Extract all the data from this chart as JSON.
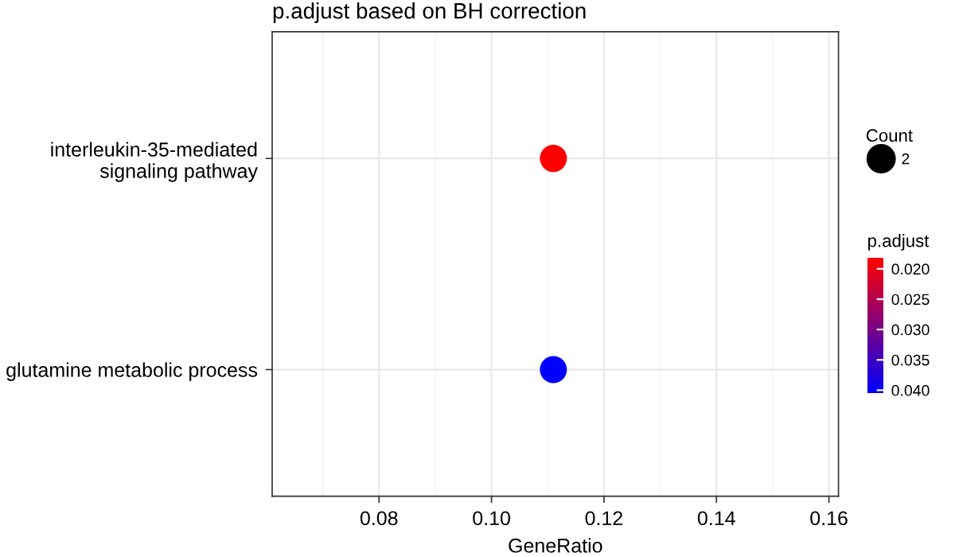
{
  "chart_data": {
    "type": "scatter",
    "orientation": "horizontal",
    "title": "p.adjust based on BH correction",
    "xlabel": "GeneRatio",
    "categories": [
      "interleukin-35-mediated\nsignaling pathway",
      "glutamine metabolic process"
    ],
    "values": [
      0.111,
      0.111
    ],
    "cvalues": [
      0.0182,
      0.0405
    ],
    "sizes": [
      2,
      2
    ],
    "size_legend": [
      2
    ],
    "legend_title": "Count",
    "clabel": "p.adjust",
    "colors": [
      "#ff0000",
      "#0000ff"
    ],
    "clim": [
      0.0405,
      0.0182
    ],
    "cticks": [
      {
        "value": 0.02,
        "label": "0.020"
      },
      0.025,
      {
        "value": 0.03,
        "label": "0.030"
      },
      0.035,
      {
        "value": 0.04,
        "label": "0.040"
      }
    ],
    "xlim": [
      0.061,
      0.1617
    ],
    "xticks": [
      0.08,
      {
        "value": 0.1,
        "label": "0.10"
      },
      0.12,
      0.14,
      0.16
    ],
    "grid": true,
    "marker": "circle"
  }
}
